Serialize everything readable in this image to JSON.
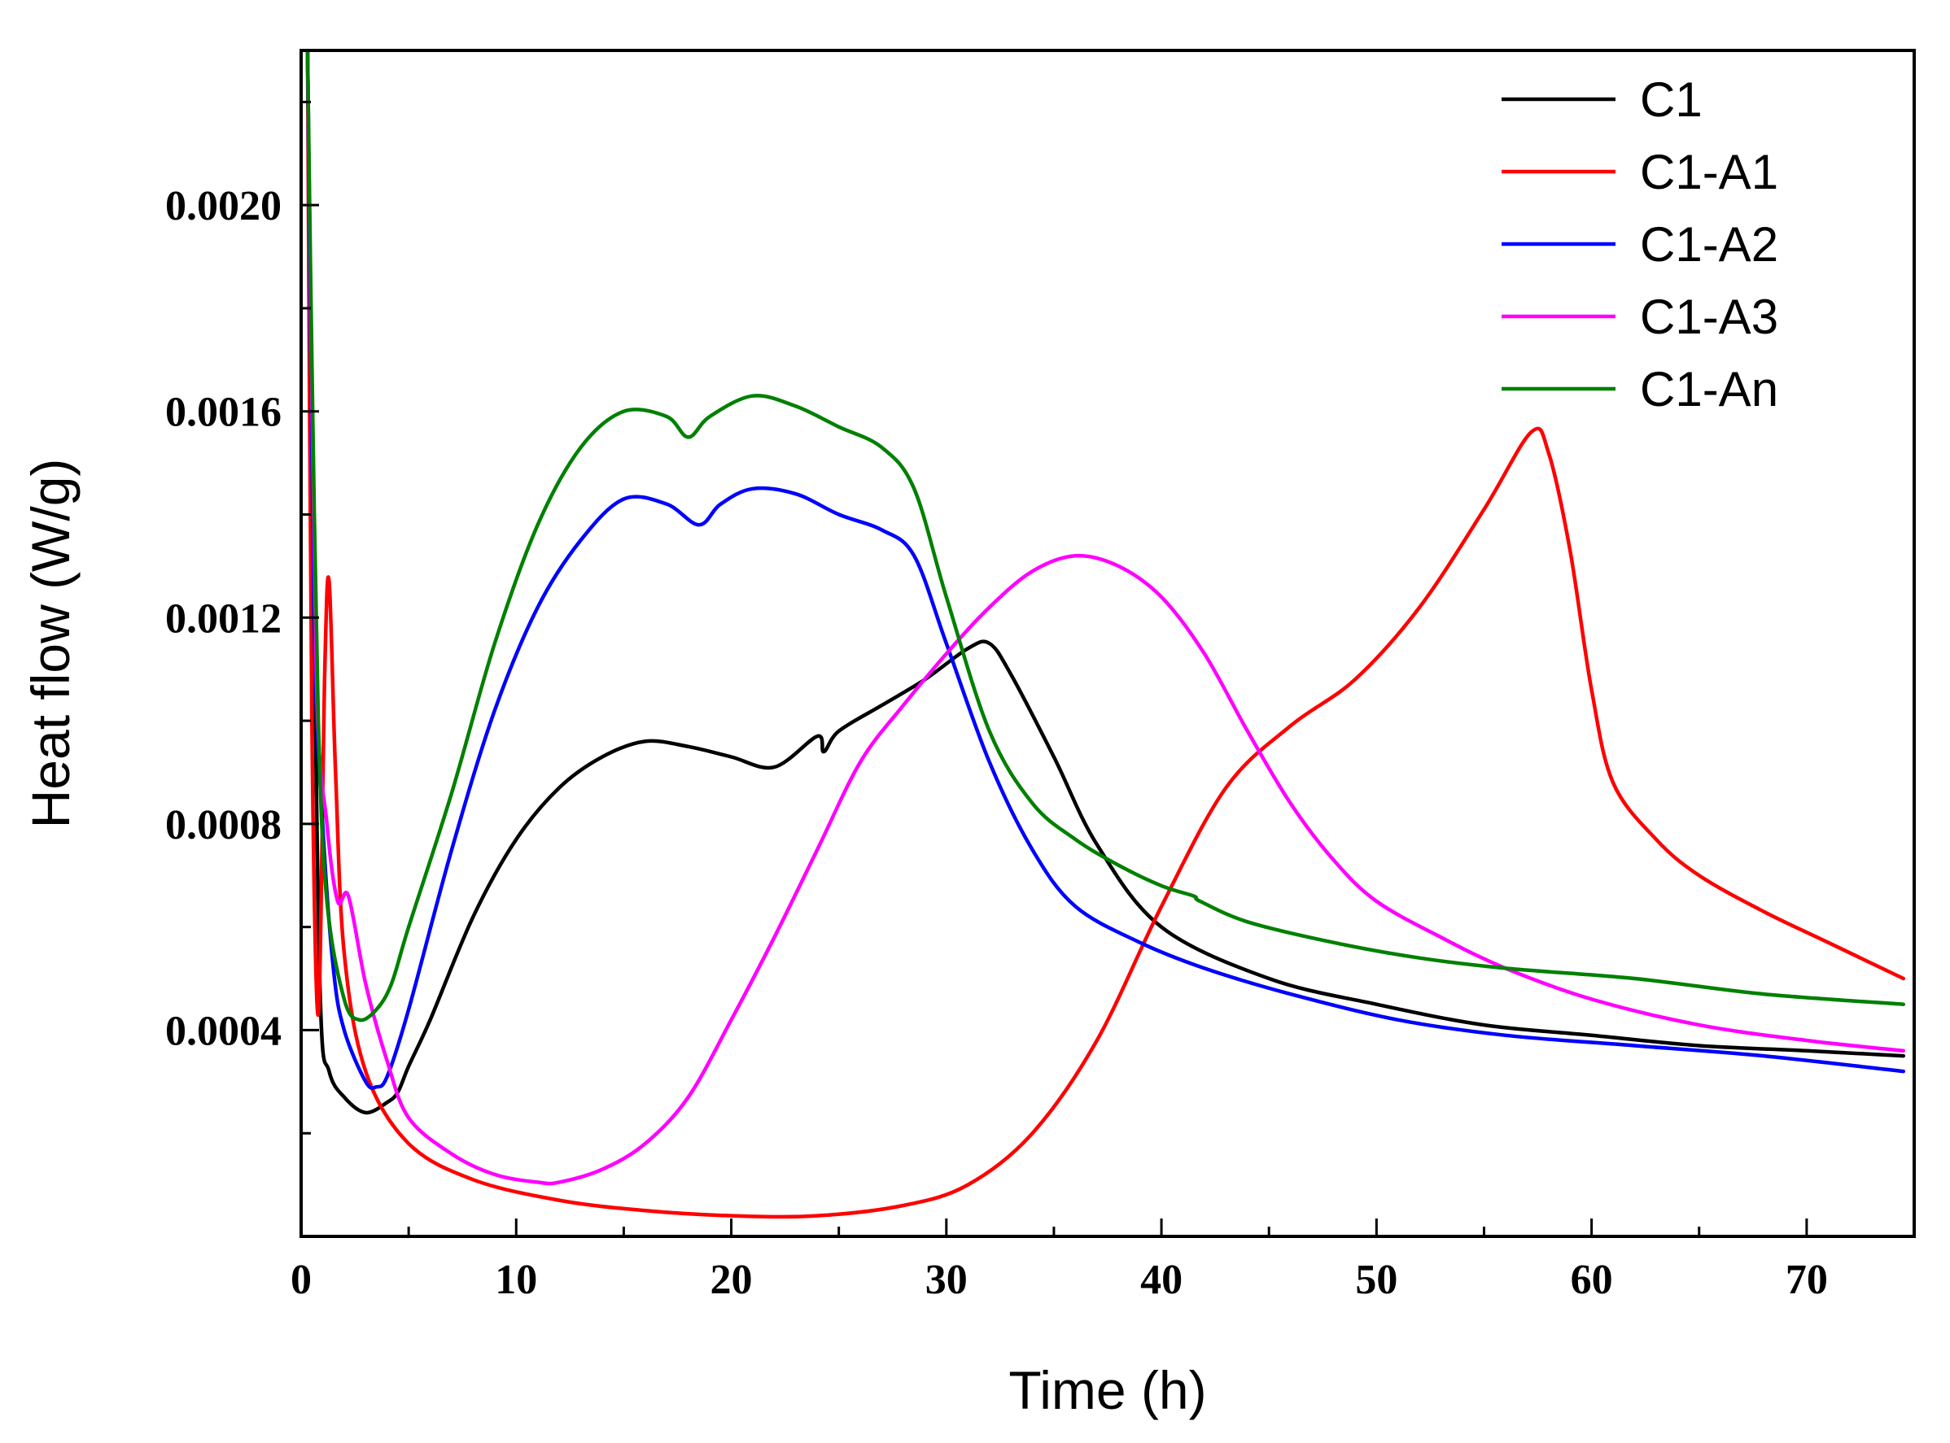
{
  "chart_data": {
    "type": "line",
    "title": "",
    "xlabel": "Time (h)",
    "ylabel": "Heat flow (W/g)",
    "xlim": [
      0,
      75
    ],
    "ylim": [
      0.0,
      0.0023
    ],
    "xticks": [
      0,
      10,
      20,
      30,
      40,
      50,
      60,
      70
    ],
    "xtick_labels": [
      "0",
      "10",
      "20",
      "30",
      "40",
      "50",
      "60",
      "70"
    ],
    "yticks": [
      0.0004,
      0.0008,
      0.0012,
      0.0016,
      0.002
    ],
    "ytick_labels": [
      "0.0004",
      "0.0008",
      "0.0012",
      "0.0016",
      "0.0020"
    ],
    "grid": false,
    "legend_position": "top-right",
    "series": [
      {
        "name": "C1",
        "color": "#000000",
        "points": [
          [
            0.3,
            0.0023
          ],
          [
            0.6,
            0.0012
          ],
          [
            0.9,
            0.00045
          ],
          [
            1.3,
            0.00032
          ],
          [
            2,
            0.00027
          ],
          [
            3,
            0.00024
          ],
          [
            4,
            0.00026
          ],
          [
            4.5,
            0.00028
          ],
          [
            5,
            0.00033
          ],
          [
            6,
            0.00042
          ],
          [
            8,
            0.00062
          ],
          [
            10,
            0.00077
          ],
          [
            12,
            0.00087
          ],
          [
            14,
            0.00093
          ],
          [
            16,
            0.00096
          ],
          [
            18,
            0.00095
          ],
          [
            20,
            0.00093
          ],
          [
            22,
            0.00091
          ],
          [
            24,
            0.00097
          ],
          [
            24.3,
            0.00094
          ],
          [
            25,
            0.00098
          ],
          [
            27,
            0.00103
          ],
          [
            29,
            0.00108
          ],
          [
            31,
            0.00114
          ],
          [
            32,
            0.00115
          ],
          [
            33,
            0.00109
          ],
          [
            35,
            0.00093
          ],
          [
            37,
            0.00076
          ],
          [
            40,
            0.0006
          ],
          [
            45,
            0.0005
          ],
          [
            50,
            0.00045
          ],
          [
            55,
            0.00041
          ],
          [
            60,
            0.00039
          ],
          [
            65,
            0.00037
          ],
          [
            70,
            0.00036
          ],
          [
            74.5,
            0.00035
          ]
        ]
      },
      {
        "name": "C1-A1",
        "color": "#ff0000",
        "points": [
          [
            0.3,
            0.0023
          ],
          [
            0.5,
            0.001
          ],
          [
            0.8,
            0.00043
          ],
          [
            1.1,
            0.0011
          ],
          [
            1.3,
            0.00127
          ],
          [
            1.6,
            0.0009
          ],
          [
            2,
            0.00055
          ],
          [
            3,
            0.00032
          ],
          [
            5,
            0.00018
          ],
          [
            8,
            0.00011
          ],
          [
            12,
            7e-05
          ],
          [
            16,
            5e-05
          ],
          [
            20,
            4e-05
          ],
          [
            24,
            4e-05
          ],
          [
            28,
            6e-05
          ],
          [
            31,
            0.0001
          ],
          [
            34,
            0.0002
          ],
          [
            37,
            0.00038
          ],
          [
            40,
            0.00064
          ],
          [
            43,
            0.00087
          ],
          [
            46,
            0.00099
          ],
          [
            49,
            0.00108
          ],
          [
            52,
            0.00122
          ],
          [
            55,
            0.00141
          ],
          [
            57.2,
            0.00156
          ],
          [
            58,
            0.00152
          ],
          [
            59,
            0.00133
          ],
          [
            60,
            0.00106
          ],
          [
            61,
            0.00088
          ],
          [
            63,
            0.00077
          ],
          [
            65,
            0.0007
          ],
          [
            68,
            0.00063
          ],
          [
            71,
            0.00057
          ],
          [
            74.5,
            0.0005
          ]
        ]
      },
      {
        "name": "C1-A2",
        "color": "#0000ff",
        "points": [
          [
            0.3,
            0.0023
          ],
          [
            0.6,
            0.0012
          ],
          [
            1,
            0.0008
          ],
          [
            1.5,
            0.00052
          ],
          [
            2,
            0.0004
          ],
          [
            3,
            0.0003
          ],
          [
            3.5,
            0.00029
          ],
          [
            4,
            0.00031
          ],
          [
            5,
            0.00044
          ],
          [
            7,
            0.00075
          ],
          [
            9,
            0.00102
          ],
          [
            11,
            0.00122
          ],
          [
            13,
            0.00135
          ],
          [
            15,
            0.00143
          ],
          [
            17,
            0.00142
          ],
          [
            18.5,
            0.00138
          ],
          [
            19.5,
            0.00142
          ],
          [
            21,
            0.00145
          ],
          [
            23,
            0.00144
          ],
          [
            25,
            0.0014
          ],
          [
            27,
            0.00137
          ],
          [
            28.5,
            0.00132
          ],
          [
            30,
            0.00115
          ],
          [
            32,
            0.00092
          ],
          [
            34,
            0.00075
          ],
          [
            36,
            0.00064
          ],
          [
            39,
            0.00057
          ],
          [
            42,
            0.00052
          ],
          [
            46,
            0.00047
          ],
          [
            51,
            0.00042
          ],
          [
            56,
            0.00039
          ],
          [
            62,
            0.00037
          ],
          [
            68,
            0.00035
          ],
          [
            74.5,
            0.00032
          ]
        ]
      },
      {
        "name": "C1-A3",
        "color": "#ff00ff",
        "points": [
          [
            0.3,
            0.0023
          ],
          [
            0.7,
            0.0011
          ],
          [
            1.2,
            0.0008
          ],
          [
            1.7,
            0.00065
          ],
          [
            2.2,
            0.00066
          ],
          [
            3,
            0.00049
          ],
          [
            4,
            0.00034
          ],
          [
            5,
            0.00023
          ],
          [
            7,
            0.00016
          ],
          [
            9,
            0.00012
          ],
          [
            11,
            0.000105
          ],
          [
            12,
            0.000105
          ],
          [
            14,
            0.00013
          ],
          [
            16,
            0.00018
          ],
          [
            18,
            0.00027
          ],
          [
            20,
            0.00042
          ],
          [
            22,
            0.00058
          ],
          [
            24,
            0.00075
          ],
          [
            26,
            0.00092
          ],
          [
            28,
            0.00103
          ],
          [
            30,
            0.00113
          ],
          [
            32,
            0.00122
          ],
          [
            34,
            0.00129
          ],
          [
            36,
            0.00132
          ],
          [
            38,
            0.0013
          ],
          [
            40,
            0.00124
          ],
          [
            42,
            0.00113
          ],
          [
            44,
            0.00098
          ],
          [
            46,
            0.00084
          ],
          [
            48,
            0.00073
          ],
          [
            50,
            0.00065
          ],
          [
            53,
            0.00058
          ],
          [
            56,
            0.00052
          ],
          [
            60,
            0.00046
          ],
          [
            65,
            0.00041
          ],
          [
            70,
            0.00038
          ],
          [
            74.5,
            0.00036
          ]
        ]
      },
      {
        "name": "C1-An",
        "color": "#008000",
        "points": [
          [
            0.3,
            0.0023
          ],
          [
            0.5,
            0.0017
          ],
          [
            0.8,
            0.001
          ],
          [
            1.2,
            0.00065
          ],
          [
            2,
            0.00046
          ],
          [
            2.7,
            0.00042
          ],
          [
            3.5,
            0.00044
          ],
          [
            4.2,
            0.00049
          ],
          [
            5,
            0.0006
          ],
          [
            7,
            0.00086
          ],
          [
            9,
            0.00115
          ],
          [
            11,
            0.00138
          ],
          [
            13,
            0.00153
          ],
          [
            15,
            0.0016
          ],
          [
            17,
            0.00159
          ],
          [
            18,
            0.00155
          ],
          [
            19,
            0.00159
          ],
          [
            21,
            0.00163
          ],
          [
            23,
            0.00161
          ],
          [
            25,
            0.00157
          ],
          [
            27,
            0.00153
          ],
          [
            28.5,
            0.00145
          ],
          [
            30,
            0.00124
          ],
          [
            32,
            0.00098
          ],
          [
            34,
            0.00084
          ],
          [
            36,
            0.00077
          ],
          [
            38,
            0.00072
          ],
          [
            40,
            0.00068
          ],
          [
            41.5,
            0.00066
          ],
          [
            41.8,
            0.00065
          ],
          [
            44,
            0.00061
          ],
          [
            48,
            0.00057
          ],
          [
            52,
            0.00054
          ],
          [
            56,
            0.00052
          ],
          [
            62,
            0.0005
          ],
          [
            68,
            0.00047
          ],
          [
            74.5,
            0.00045
          ]
        ]
      }
    ]
  }
}
